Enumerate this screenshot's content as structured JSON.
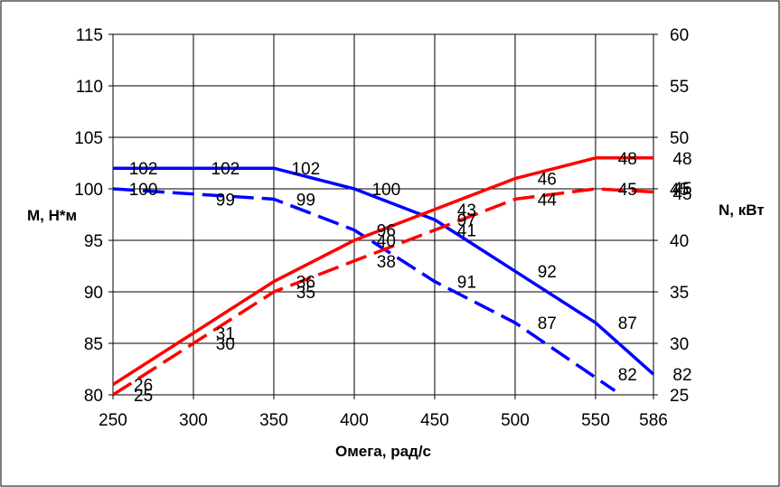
{
  "chart_data": {
    "type": "line",
    "xlabel": "Омега, рад/с",
    "ylabel": "M, Н*м",
    "y2label": "N, кВт",
    "x_ticks": [
      250,
      300,
      350,
      400,
      450,
      500,
      550,
      586
    ],
    "y_ticks": [
      80,
      85,
      90,
      95,
      100,
      105,
      110,
      115
    ],
    "y2_ticks": [
      25,
      30,
      35,
      40,
      45,
      50,
      55,
      60
    ],
    "xlim": [
      250,
      586
    ],
    "ylim": [
      80,
      115
    ],
    "y2lim": [
      25,
      60
    ],
    "grid": true,
    "colors": {
      "blue": "#0000ff",
      "red": "#ff0000"
    },
    "series": [
      {
        "axis": "left",
        "color": "#0000ff",
        "dash": false,
        "x": [
          250,
          350,
          400,
          450,
          500,
          550,
          586
        ],
        "y": [
          102,
          102,
          100,
          97,
          92,
          87,
          82
        ],
        "labels": [
          {
            "x": 270,
            "y": 102,
            "text": "102"
          },
          {
            "x": 321,
            "y": 102,
            "text": "102"
          },
          {
            "x": 371,
            "y": 102,
            "text": "102"
          },
          {
            "x": 421,
            "y": 100,
            "text": "100"
          },
          {
            "x": 521,
            "y": 92,
            "text": "92"
          },
          {
            "x": 571,
            "y": 87,
            "text": "87"
          }
        ]
      },
      {
        "axis": "left",
        "color": "#0000ff",
        "dash": true,
        "x": [
          250,
          350,
          400,
          450,
          500,
          562
        ],
        "y": [
          100,
          99,
          96,
          91,
          87,
          80.4
        ],
        "labels": [
          {
            "x": 270,
            "y": 100,
            "text": "100"
          },
          {
            "x": 321,
            "y": 99,
            "text": "99"
          },
          {
            "x": 371,
            "y": 99,
            "text": "99"
          },
          {
            "x": 471,
            "y": 91,
            "text": "91"
          },
          {
            "x": 521,
            "y": 87,
            "text": "87"
          },
          {
            "x": 571,
            "y": 82,
            "text": "82"
          }
        ]
      },
      {
        "axis": "right",
        "color": "#ff0000",
        "dash": false,
        "x": [
          250,
          300,
          350,
          400,
          450,
          500,
          550,
          586
        ],
        "y": [
          26,
          31,
          36,
          40,
          43,
          46,
          48,
          48
        ],
        "labels": [
          {
            "x": 270,
            "y": 26,
            "text": "26"
          },
          {
            "x": 321,
            "y": 31,
            "text": "31"
          },
          {
            "x": 371,
            "y": 36,
            "text": "36"
          },
          {
            "x": 421,
            "y": 40,
            "text": "40"
          },
          {
            "x": 471,
            "y": 43,
            "text": "43"
          },
          {
            "x": 521,
            "y": 46,
            "text": "46"
          },
          {
            "x": 571,
            "y": 48,
            "text": "48"
          }
        ]
      },
      {
        "axis": "right",
        "color": "#ff0000",
        "dash": true,
        "x": [
          250,
          300,
          350,
          400,
          450,
          500,
          550,
          586
        ],
        "y": [
          25,
          30,
          35,
          38,
          41,
          44,
          45,
          44.7
        ],
        "labels": [
          {
            "x": 270,
            "y": 25,
            "text": "25"
          },
          {
            "x": 321,
            "y": 30,
            "text": "30"
          },
          {
            "x": 371,
            "y": 35,
            "text": "35"
          },
          {
            "x": 421,
            "y": 38,
            "text": "38"
          },
          {
            "x": 471,
            "y": 41,
            "text": "41"
          },
          {
            "x": 521,
            "y": 44,
            "text": "44"
          },
          {
            "x": 571,
            "y": 45,
            "text": "45"
          }
        ]
      }
    ],
    "extra_labels": [
      {
        "axis": "left",
        "x": 421,
        "y": 96,
        "text": "96"
      },
      {
        "axis": "left",
        "x": 471,
        "y": 97,
        "text": "97"
      },
      {
        "axis": "right",
        "x": 586,
        "y": 48,
        "text": "48"
      },
      {
        "axis": "right",
        "x": 586,
        "y": 45,
        "text": "45"
      },
      {
        "axis": "right",
        "x": 586,
        "y": 45,
        "text": "45"
      },
      {
        "axis": "right",
        "x": 586,
        "y": 82,
        "text": "82"
      }
    ]
  }
}
